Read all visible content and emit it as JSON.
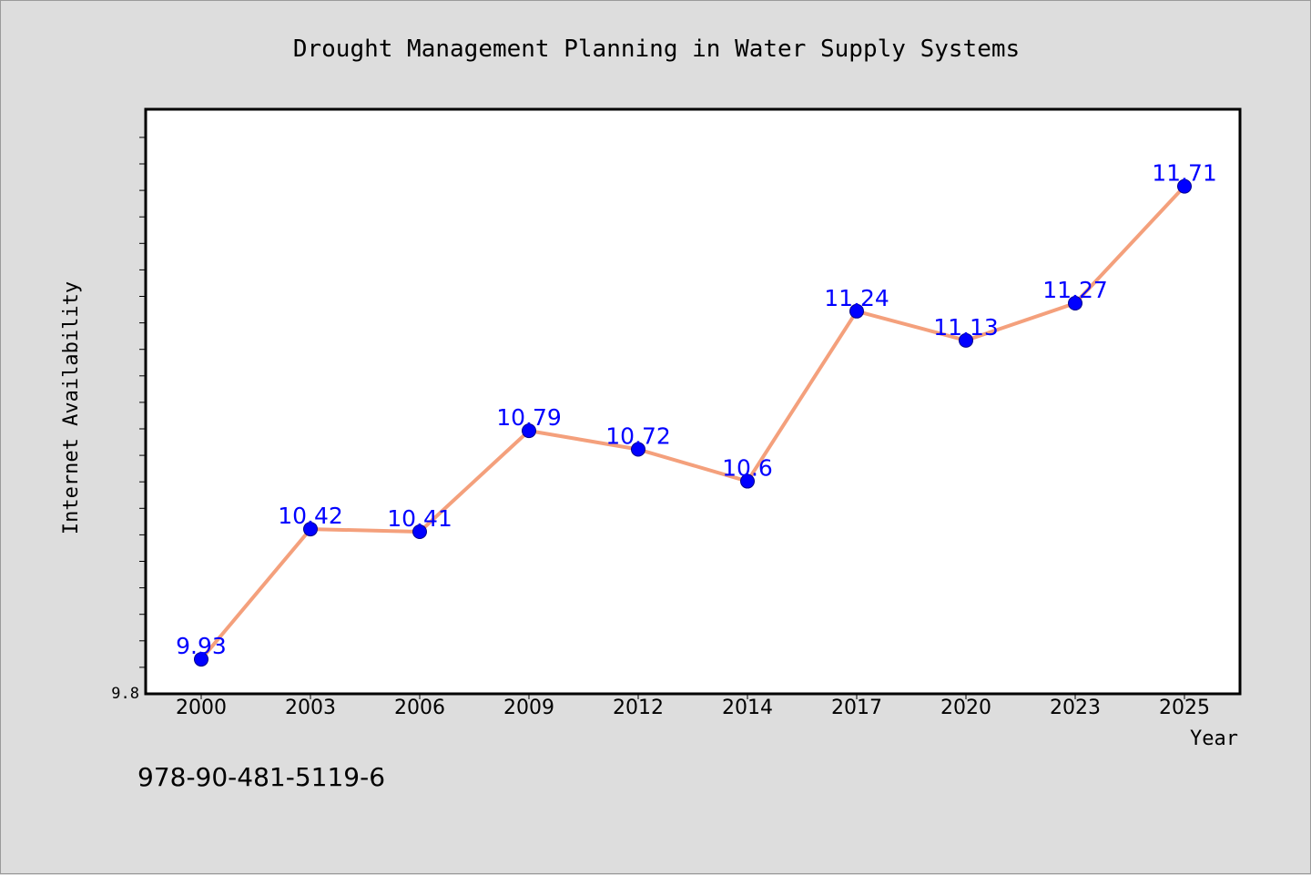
{
  "chart_data": {
    "type": "line",
    "title": "Drought Management Planning in Water Supply Systems",
    "xlabel": "Year",
    "ylabel": "Internet Availability",
    "categories": [
      "2000",
      "2003",
      "2006",
      "2009",
      "2012",
      "2014",
      "2017",
      "2020",
      "2023",
      "2025"
    ],
    "series": [
      {
        "values": [
          9.93,
          10.42,
          10.41,
          10.79,
          10.72,
          10.6,
          11.24,
          11.13,
          11.27,
          11.71
        ],
        "labels": [
          "9.93",
          "10.42",
          "10.41",
          "10.79",
          "10.72",
          "10.6",
          "11.24",
          "11.13",
          "11.27",
          "11.71"
        ]
      }
    ],
    "ylim": [
      9.8,
      12.0
    ],
    "y_tick_labels": [
      "9.8"
    ],
    "grid": false,
    "legend": "none",
    "colors": {
      "line": "#f4a07c",
      "marker": "#0000ff",
      "data_label": "#0000ff",
      "background": "#dddddd",
      "plot_background": "#ffffff"
    }
  },
  "footer_text": "978-90-481-5119-6"
}
